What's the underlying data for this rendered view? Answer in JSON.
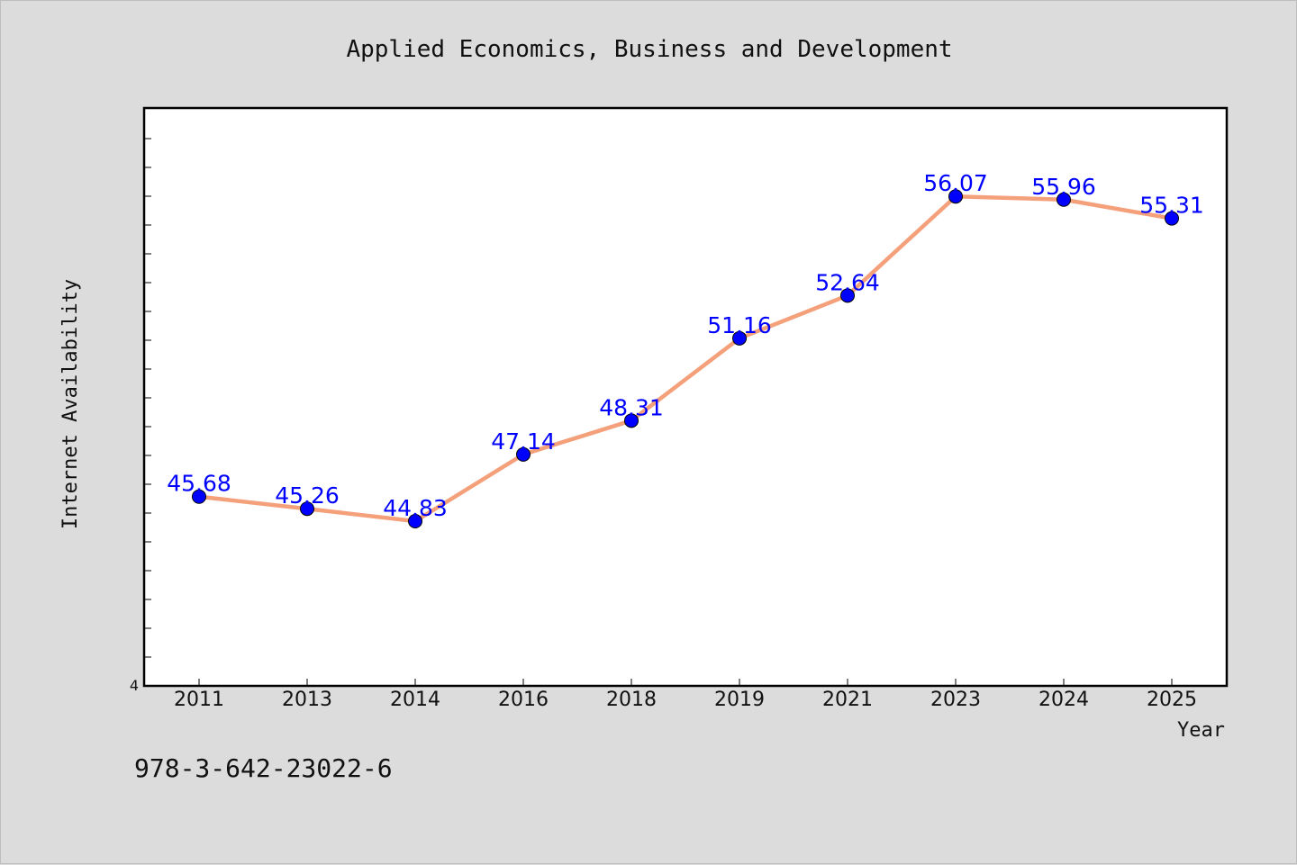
{
  "chart_data": {
    "type": "line",
    "title": "Applied Economics, Business and Development",
    "xlabel": "Year",
    "ylabel": "Internet Availability",
    "categories": [
      "2011",
      "2013",
      "2014",
      "2016",
      "2018",
      "2019",
      "2021",
      "2023",
      "2024",
      "2025"
    ],
    "series": [
      {
        "values": [
          45.68,
          45.26,
          44.83,
          47.14,
          48.31,
          51.16,
          52.64,
          56.07,
          55.96,
          55.31
        ],
        "value_labels": [
          "45.68",
          "45.26",
          "44.83",
          "47.14",
          "48.31",
          "51.16",
          "52.64",
          "56.07",
          "55.96",
          "55.31"
        ],
        "line_color": "#f4a07a",
        "marker_color": "#0000ff",
        "label_color": "#0000ff"
      }
    ],
    "y_tick_labels": [
      "4"
    ],
    "ylim": [
      39.13,
      59.13
    ],
    "grid": false,
    "legend": "none"
  },
  "footer": {
    "isbn": "978-3-642-23022-6"
  },
  "colors": {
    "background": "#dcdcdc",
    "plot_background": "#ffffff",
    "axis": "#000000"
  }
}
